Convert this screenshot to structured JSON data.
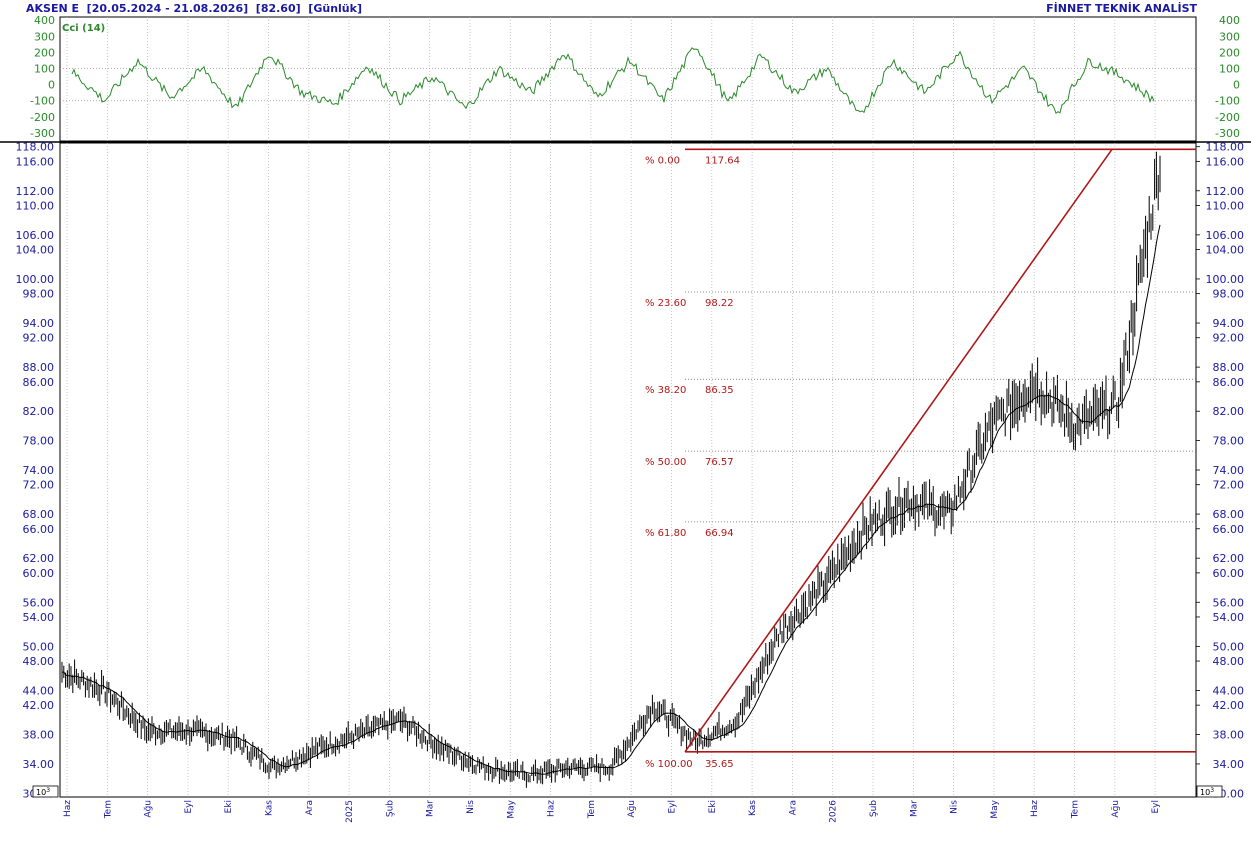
{
  "header": {
    "title_left": "AKSEN E  [20.05.2024 - 21.08.2026]  [82.60]  [Günlük]",
    "title_right": "FİNNET TEKNİK ANALİST"
  },
  "indicator": {
    "label": "Cci (14)",
    "ticks": [
      400,
      300,
      200,
      100,
      0,
      -100,
      -200,
      -300
    ],
    "ylim": [
      -350,
      420
    ]
  },
  "main_chart": {
    "y_ticks": [
      118.0,
      116.0,
      112.0,
      110.0,
      106.0,
      104.0,
      100.0,
      98.0,
      94.0,
      92.0,
      88.0,
      86.0,
      82.0,
      78.0,
      74.0,
      72.0,
      68.0,
      66.0,
      62.0,
      60.0,
      56.0,
      54.0,
      50.0,
      48.0,
      44.0,
      42.0,
      38.0,
      34.0,
      30.0
    ],
    "scale_label": "10^3"
  },
  "x_axis": {
    "months": [
      "Haz",
      "Tem",
      "Ağu",
      "Eyl",
      "Eki",
      "Kas",
      "Ara",
      "2025",
      "Şub",
      "Mar",
      "Nis",
      "May",
      "Haz",
      "Tem",
      "Ağu",
      "Eyl",
      "Eki",
      "Kas",
      "Ara",
      "2026",
      "Şub",
      "Mar",
      "Nis",
      "May",
      "Haz",
      "Tem",
      "Ağu",
      "Eyl"
    ]
  },
  "colors": {
    "price": "#000000",
    "cci": "#2a8a2a",
    "fib": "#b01818",
    "axis_text": "#1a1aa0",
    "grid": "#bbbbbb"
  },
  "chart_data": [
    {
      "type": "line",
      "title": "AKSEN E",
      "ylabel": "",
      "x": [
        "2024-06",
        "2024-07",
        "2024-08",
        "2024-09",
        "2024-10",
        "2024-11",
        "2024-12",
        "2025-01",
        "2025-02",
        "2025-03",
        "2025-04",
        "2025-05",
        "2025-06",
        "2025-07",
        "2025-08",
        "2025-09",
        "2025-10",
        "2025-11",
        "2025-12",
        "2026-01",
        "2026-02",
        "2026-03",
        "2026-04",
        "2026-05",
        "2026-06",
        "2026-07",
        "2026-08"
      ],
      "series": [
        {
          "values": [
            46.5,
            44.0,
            38.5,
            38.5,
            37.5,
            33.5,
            36.0,
            38.0,
            40.0,
            36.0,
            33.5,
            32.5,
            33.5,
            33.5,
            42.0,
            37.0,
            40.0,
            52.0,
            58.0,
            66.0,
            70.0,
            68.0,
            80.0,
            86.0,
            80.0,
            83.0,
            116.0
          ]
        }
      ],
      "ylim": [
        29.5,
        118.5
      ]
    },
    {
      "type": "line",
      "title": "",
      "series": [
        {
          "name": "Cci (14)",
          "values": [
            80,
            -100,
            150,
            -80,
            100,
            -150,
            200,
            -50,
            -120,
            120,
            -100,
            50,
            -150,
            100,
            -50,
            200,
            -80,
            150,
            -100,
            250,
            -120,
            180,
            -50,
            100,
            -200,
            150,
            -50,
            200,
            -100,
            100,
            -180,
            150,
            50,
            -100
          ]
        }
      ],
      "ylim": [
        -350,
        420
      ]
    }
  ],
  "fibonacci": {
    "levels": [
      {
        "pct": "% 0.00",
        "value": "117.64",
        "price": 117.64
      },
      {
        "pct": "% 23.60",
        "value": "98.22",
        "price": 98.22
      },
      {
        "pct": "% 38.20",
        "value": "86.35",
        "price": 86.35
      },
      {
        "pct": "% 50.00",
        "value": "76.57",
        "price": 76.57
      },
      {
        "pct": "% 61.80",
        "value": "66.94",
        "price": 66.94
      },
      {
        "pct": "% 100.00",
        "value": "35.65",
        "price": 35.65
      }
    ]
  }
}
